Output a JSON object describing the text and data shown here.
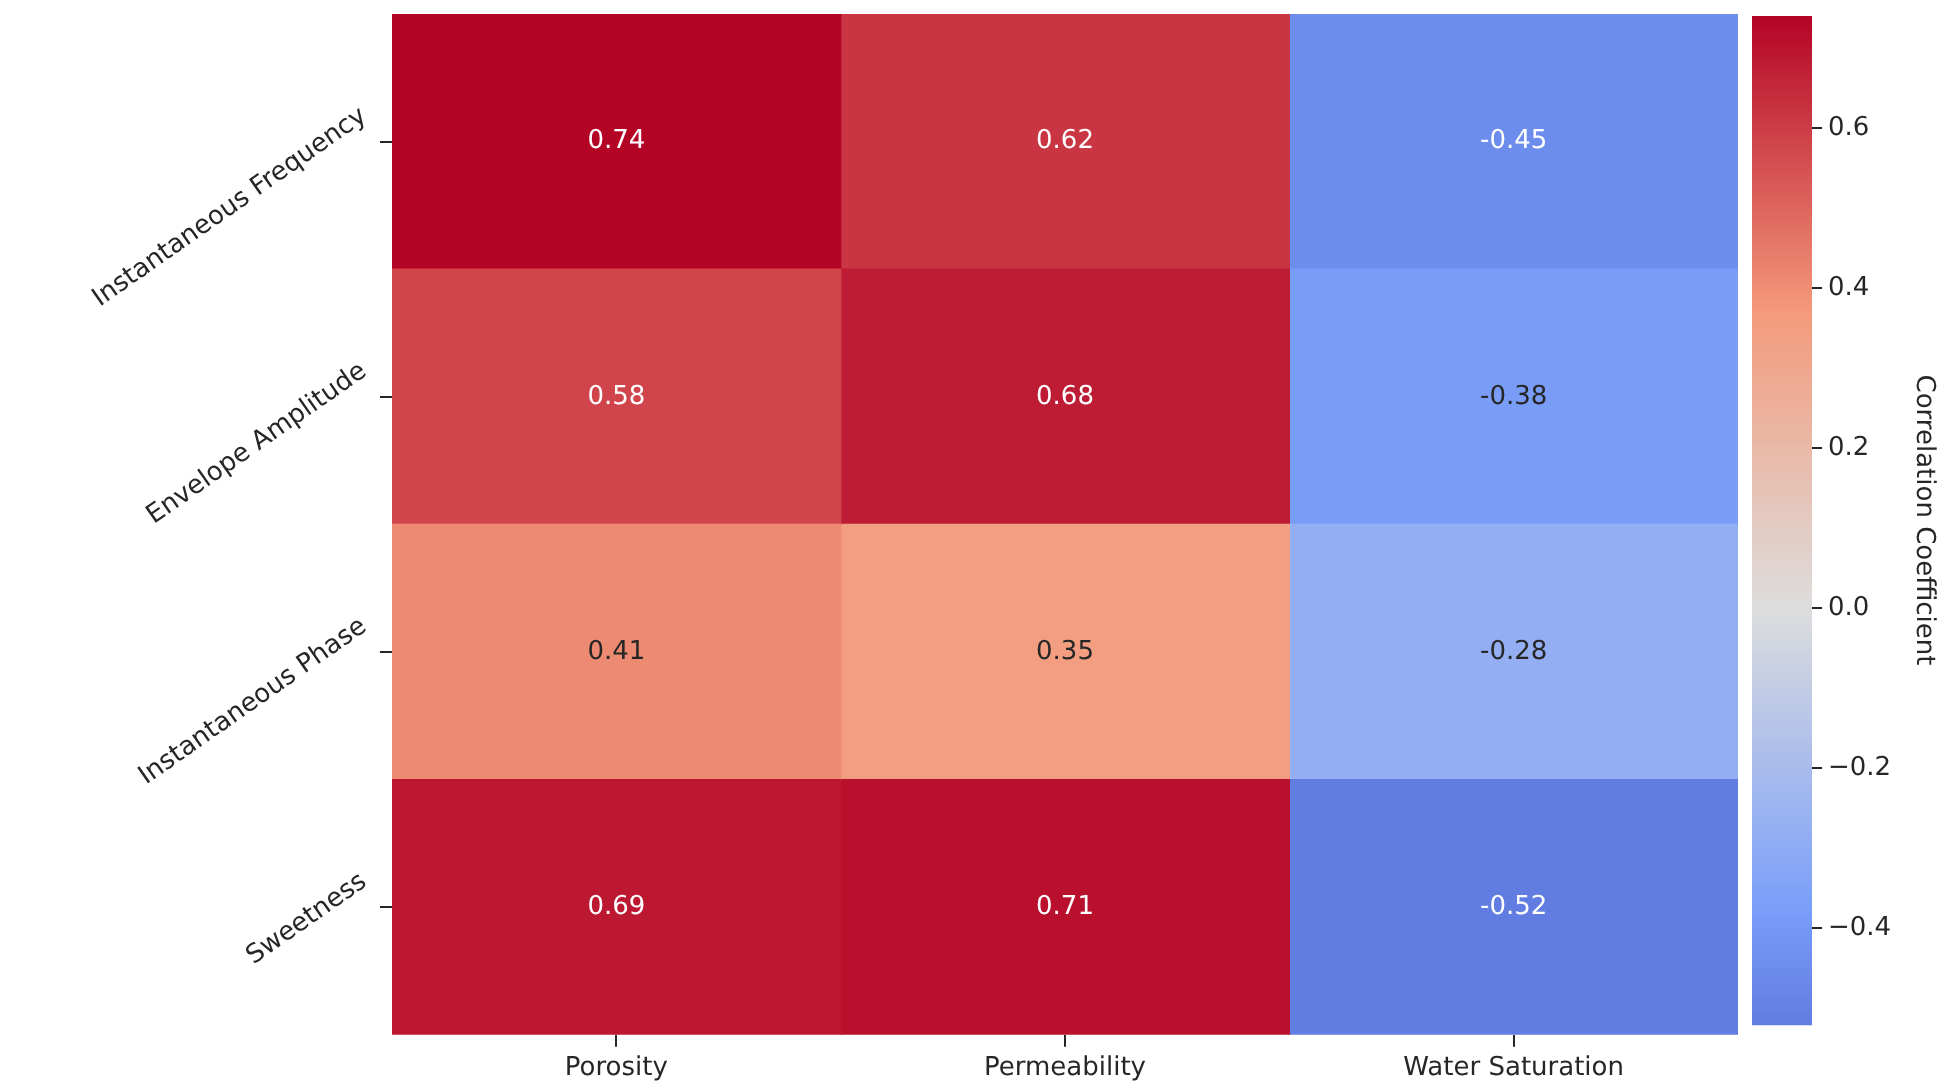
{
  "chart_data": {
    "type": "heatmap",
    "categories": [
      "Porosity",
      "Permeability",
      "Water Saturation"
    ],
    "y_categories": [
      "Instantaneous Frequency",
      "Envelope Amplitude",
      "Instantaneous Phase",
      "Sweetness"
    ],
    "cells": [
      [
        0.74,
        0.62,
        -0.45
      ],
      [
        0.58,
        0.68,
        -0.38
      ],
      [
        0.41,
        0.35,
        -0.28
      ],
      [
        0.69,
        0.71,
        -0.52
      ]
    ],
    "clim": [
      -0.52,
      0.74
    ],
    "cticks": [
      -0.4,
      -0.2,
      {
        "value": 0,
        "label": "0.0"
      },
      0.2,
      0.4,
      0.6
    ],
    "clabel": "Correlation Coefficient",
    "data_labels": true,
    "grid": false,
    "legend": false
  }
}
